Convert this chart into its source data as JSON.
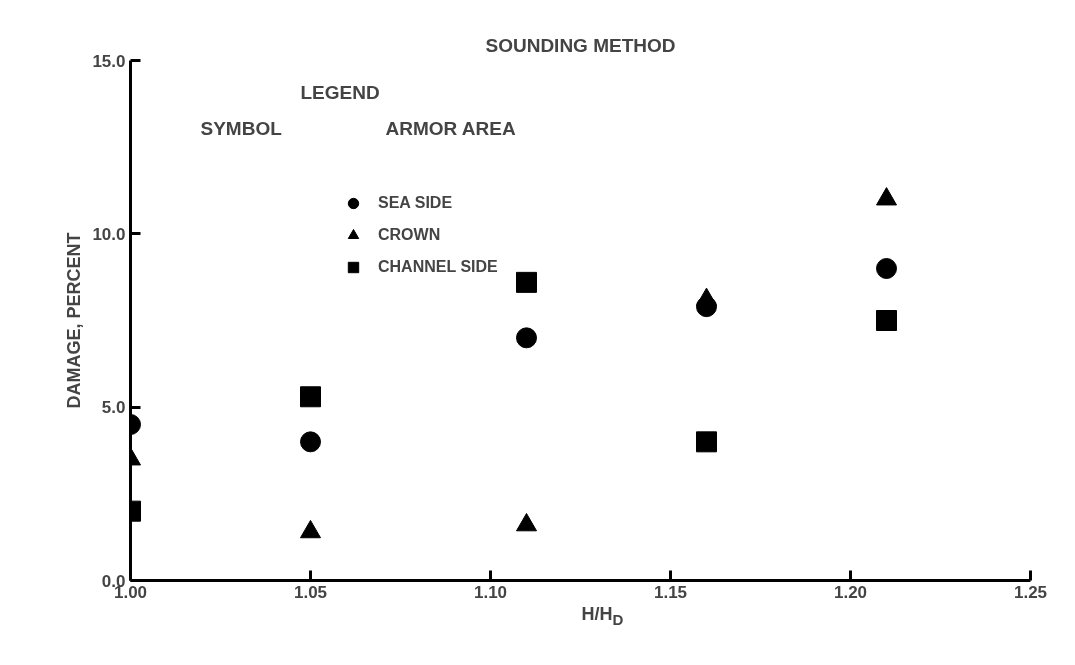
{
  "chart_data": {
    "type": "scatter",
    "title": "SOUNDING METHOD",
    "xlabel": "H/H$_{D}$",
    "ylabel": "DAMAGE, PERCENT",
    "legend_title": "LEGEND",
    "annotations": [
      "SYMBOL",
      "ARMOR AREA"
    ],
    "x": [
      1.0,
      1.05,
      1.11,
      1.16,
      1.21
    ],
    "series": [
      {
        "name": "SEA SIDE",
        "color": "#000000",
        "marker": "circle",
        "values": [
          4.5,
          4.0,
          7.0,
          7.9,
          9.0
        ]
      },
      {
        "name": "CROWN",
        "color": "#000000",
        "marker": "triangle",
        "values": [
          3.5,
          1.4,
          1.6,
          8.1,
          11.0
        ]
      },
      {
        "name": "CHANNEL SIDE",
        "color": "#000000",
        "marker": "square",
        "values": [
          2.0,
          5.3,
          8.6,
          4.0,
          7.5
        ]
      }
    ],
    "xlim": [
      1.0,
      1.25
    ],
    "xticks": [
      {
        "value": 1.0,
        "label": "1.00"
      },
      {
        "value": 1.05,
        "label": "1.05"
      },
      {
        "value": 1.1,
        "label": "1.10"
      },
      {
        "value": 1.15,
        "label": "1.15"
      },
      {
        "value": 1.2,
        "label": "1.20"
      },
      {
        "value": 1.25,
        "label": "1.25"
      }
    ],
    "ylim": [
      0,
      15
    ],
    "yticks": [
      {
        "value": 0,
        "label": "0.0"
      },
      {
        "value": 5,
        "label": "5.0"
      },
      {
        "value": 10,
        "label": "10.0"
      },
      {
        "value": 15,
        "label": "15.0"
      }
    ],
    "grid": false,
    "legend": "top left"
  }
}
